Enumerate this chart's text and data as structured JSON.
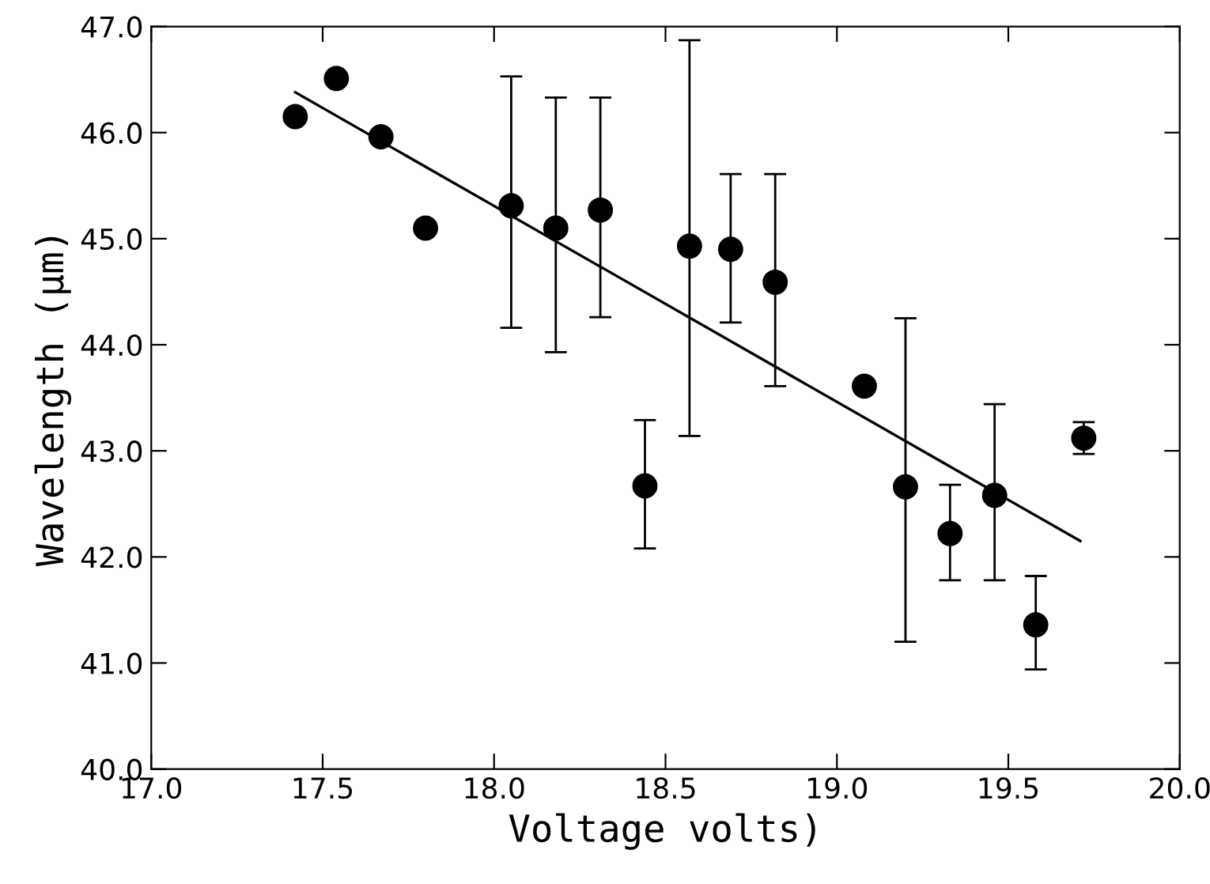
{
  "chart_data": {
    "type": "scatter",
    "xlabel": "Voltage volts)",
    "ylabel": "Wavelength (μm)",
    "xlim": [
      17.0,
      20.0
    ],
    "ylim": [
      40.0,
      47.0
    ],
    "xticks": [
      {
        "value": 17.0,
        "label": "17.0"
      },
      {
        "value": 17.5,
        "label": "17.5"
      },
      {
        "value": 18.0,
        "label": "18.0"
      },
      {
        "value": 18.5,
        "label": "18.5"
      },
      {
        "value": 19.0,
        "label": "19.0"
      },
      {
        "value": 19.5,
        "label": "19.5"
      },
      {
        "value": 20.0,
        "label": "20.0"
      }
    ],
    "yticks": [
      {
        "value": 40.0,
        "label": "40.0"
      },
      {
        "value": 41.0,
        "label": "41.0"
      },
      {
        "value": 42.0,
        "label": "42.0"
      },
      {
        "value": 43.0,
        "label": "43.0"
      },
      {
        "value": 44.0,
        "label": "44.0"
      },
      {
        "value": 45.0,
        "label": "45.0"
      },
      {
        "value": 46.0,
        "label": "46.0"
      },
      {
        "value": 47.0,
        "label": "47.0"
      }
    ],
    "grid": false,
    "marker": "circle",
    "series": [
      {
        "color": "#000000",
        "x": [
          17.42,
          17.54,
          17.67,
          17.8,
          18.05,
          18.18,
          18.31,
          18.44,
          18.57,
          18.69,
          18.82,
          19.08,
          19.2,
          19.33,
          19.46,
          19.58,
          19.72
        ],
        "values": [
          46.15,
          46.51,
          45.96,
          45.1,
          45.31,
          45.1,
          45.27,
          42.67,
          44.93,
          44.9,
          44.59,
          43.61,
          42.66,
          42.22,
          42.58,
          41.36,
          43.12
        ],
        "errors": [
          null,
          null,
          null,
          null,
          [
            44.16,
            46.53
          ],
          [
            43.93,
            46.33
          ],
          [
            44.26,
            46.33
          ],
          [
            42.08,
            43.29
          ],
          [
            43.14,
            46.87
          ],
          [
            44.21,
            45.61
          ],
          [
            43.61,
            45.61
          ],
          null,
          [
            41.2,
            44.25
          ],
          [
            41.78,
            42.68
          ],
          [
            41.78,
            43.44
          ],
          [
            40.94,
            41.82
          ],
          [
            42.97,
            43.27
          ]
        ]
      },
      {
        "type": "line",
        "color": "#000000",
        "x": [
          17.42,
          19.71
        ],
        "values": [
          46.38,
          42.15
        ],
        "marker": "none",
        "line_style": "solid"
      }
    ]
  }
}
